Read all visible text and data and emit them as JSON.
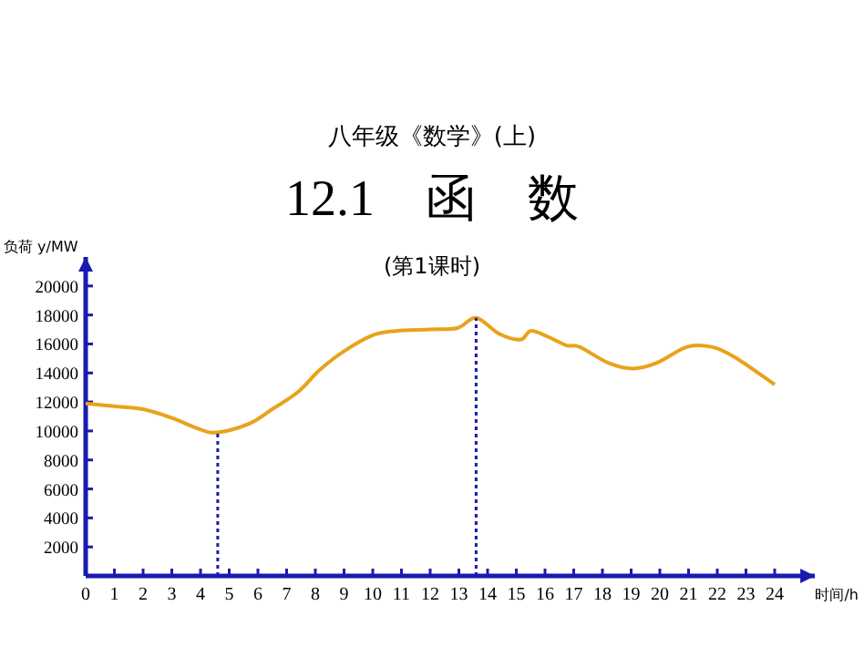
{
  "chart_data": {
    "type": "line",
    "title": "八年级《数学》(上)",
    "subtitle": "12.1　函　数",
    "annotations": [
      "(第1课时)"
    ],
    "xlabel": "时间/h",
    "ylabel": "负荷 y/MW",
    "x": [
      0,
      1,
      2,
      3,
      4,
      4.6,
      5.7,
      6.5,
      7.4,
      8.15,
      9,
      10,
      10.8,
      12,
      12.95,
      13.6,
      14.4,
      15.15,
      15.5,
      16.1,
      16.75,
      17.2,
      18.2,
      19.05,
      19.9,
      20.95,
      21.8,
      22.6,
      24
    ],
    "series": [
      {
        "color": "#e8a21c",
        "values": [
          11900,
          11700,
          11500,
          10900,
          10100,
          9900,
          10500,
          11500,
          12700,
          14200,
          15500,
          16600,
          16900,
          17000,
          17100,
          17800,
          16700,
          16300,
          16900,
          16500,
          15900,
          15800,
          14700,
          14300,
          14700,
          15800,
          15800,
          15100,
          13200
        ]
      }
    ],
    "xlim": [
      0,
      25.4
    ],
    "ylim": [
      0,
      22000
    ],
    "xticks": [
      0,
      1,
      2,
      3,
      4,
      5,
      6,
      7,
      8,
      9,
      10,
      11,
      12,
      13,
      14,
      15,
      16,
      17,
      18,
      19,
      20,
      21,
      22,
      23,
      24
    ],
    "yticks": [
      2000,
      4000,
      6000,
      8000,
      10000,
      12000,
      14000,
      16000,
      18000,
      20000
    ],
    "ref_lines": [
      {
        "axis": "x",
        "value": 4.6,
        "color": "#1a1ab0",
        "line_style": "dotted"
      },
      {
        "axis": "x",
        "value": 13.6,
        "color": "#1a1ab0",
        "line_style": "dotted"
      }
    ]
  }
}
